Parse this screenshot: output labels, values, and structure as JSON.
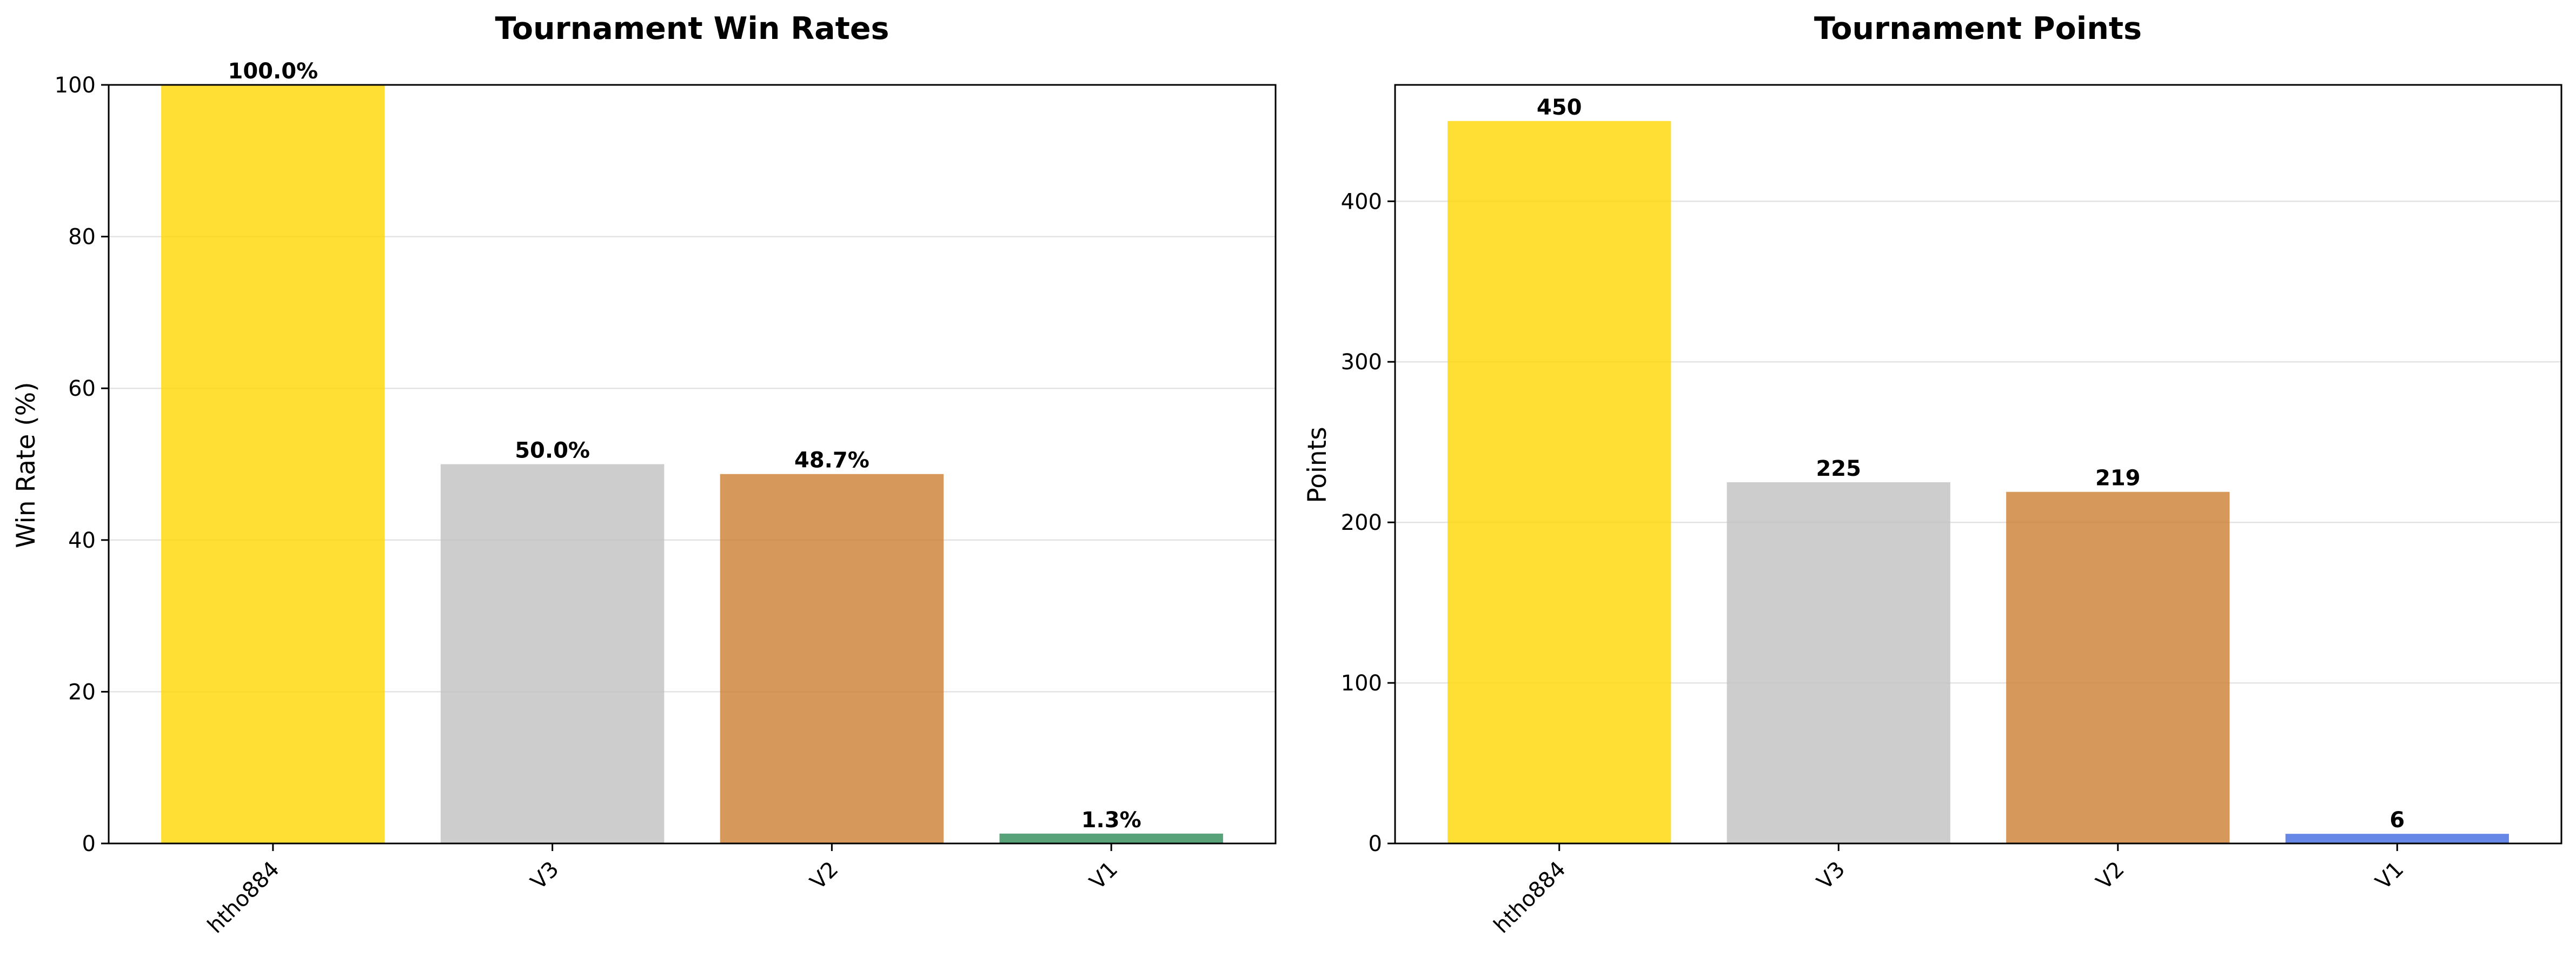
{
  "chart_data": [
    {
      "type": "bar",
      "title": "Tournament Win Rates",
      "xlabel": "",
      "ylabel": "Win Rate (%)",
      "categories": [
        "htho884",
        "V3",
        "V2",
        "V1"
      ],
      "values": [
        100.0,
        50.0,
        48.7,
        1.3
      ],
      "value_labels": [
        "100.0%",
        "50.0%",
        "48.7%",
        "1.3%"
      ],
      "colors": [
        "#ffd700",
        "#c0c0c0",
        "#cd7f32",
        "#2e8b57"
      ],
      "ylim": [
        0,
        100
      ],
      "yticks": [
        0,
        20,
        40,
        60,
        80,
        100
      ],
      "grid": "y",
      "legend": "none"
    },
    {
      "type": "bar",
      "title": "Tournament Points",
      "xlabel": "",
      "ylabel": "Points",
      "categories": [
        "htho884",
        "V3",
        "V2",
        "V1"
      ],
      "values": [
        450,
        225,
        219,
        6
      ],
      "value_labels": [
        "450",
        "225",
        "219",
        "6"
      ],
      "colors": [
        "#ffd700",
        "#c0c0c0",
        "#cd7f32",
        "#4169e1"
      ],
      "ylim": [
        0,
        472.5
      ],
      "yticks": [
        0,
        100,
        200,
        300,
        400
      ],
      "grid": "y",
      "legend": "none"
    }
  ]
}
